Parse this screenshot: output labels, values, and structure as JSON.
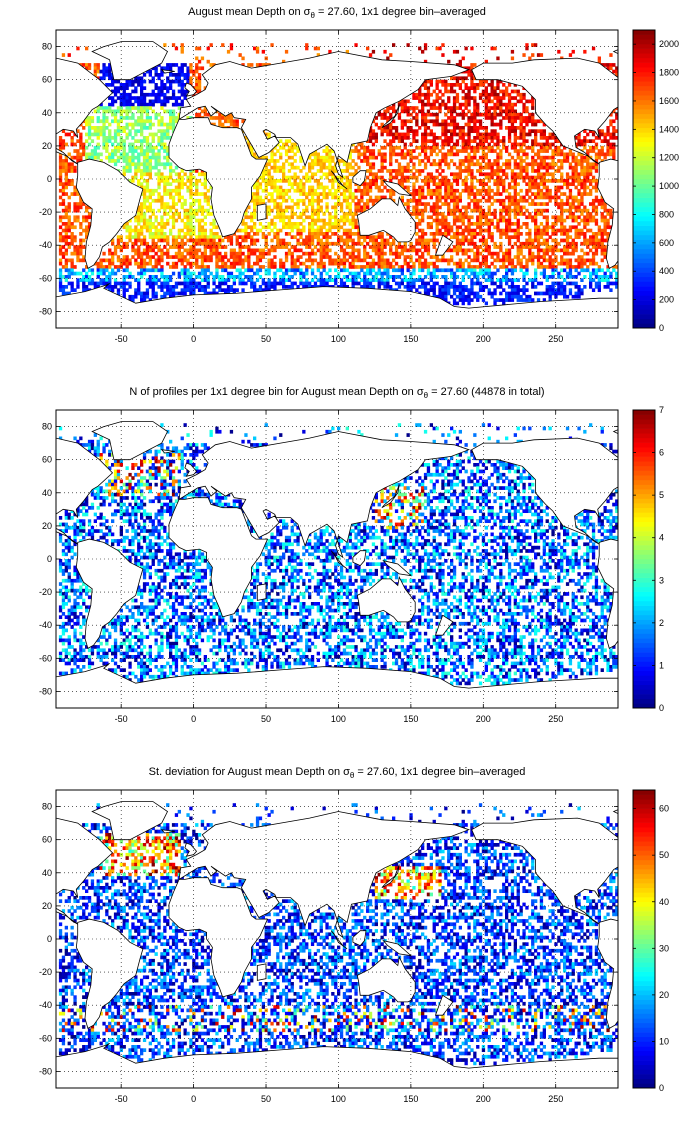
{
  "panels": [
    {
      "title_pre": "August mean Depth on σ",
      "title_sub": "θ",
      "title_post": " = 27.60, 1x1 degree bin–averaged"
    },
    {
      "title_pre": "N of profiles per 1x1 degree bin for August mean Depth on σ",
      "title_sub": "θ",
      "title_post": " = 27.60 (44878 in total)"
    },
    {
      "title_pre": "St. deviation for August mean Depth on σ",
      "title_sub": "θ",
      "title_post": " = 27.60, 1x1 degree bin–averaged"
    }
  ],
  "chart_data": [
    {
      "type": "heatmap",
      "variable": "depth",
      "x_ticks": [
        -50,
        0,
        50,
        100,
        150,
        200,
        250
      ],
      "y_ticks": [
        80,
        60,
        40,
        20,
        0,
        -20,
        -40,
        -60,
        -80
      ],
      "xlim": [
        -95,
        293
      ],
      "ylim": [
        -90,
        90
      ],
      "grid": "dotted",
      "colorbar": {
        "ticks": [
          2000,
          1800,
          1600,
          1400,
          1200,
          1000,
          800,
          600,
          400,
          200,
          0
        ],
        "range": [
          0,
          2100
        ],
        "colormap": "jet"
      }
    },
    {
      "type": "heatmap",
      "variable": "count",
      "x_ticks": [
        -50,
        0,
        50,
        100,
        150,
        200,
        250
      ],
      "y_ticks": [
        80,
        60,
        40,
        20,
        0,
        -20,
        -40,
        -60,
        -80
      ],
      "xlim": [
        -95,
        293
      ],
      "ylim": [
        -90,
        90
      ],
      "grid": "dotted",
      "colorbar": {
        "ticks": [
          7,
          6,
          5,
          4,
          3,
          2,
          1,
          0
        ],
        "range": [
          0,
          7
        ],
        "colormap": "jet"
      }
    },
    {
      "type": "heatmap",
      "variable": "std",
      "x_ticks": [
        -50,
        0,
        50,
        100,
        150,
        200,
        250
      ],
      "y_ticks": [
        80,
        60,
        40,
        20,
        0,
        -20,
        -40,
        -60,
        -80
      ],
      "xlim": [
        -95,
        293
      ],
      "ylim": [
        -90,
        90
      ],
      "grid": "dotted",
      "colorbar": {
        "ticks": [
          60,
          50,
          40,
          30,
          20,
          10,
          0
        ],
        "range": [
          0,
          64
        ],
        "colormap": "jet"
      }
    }
  ]
}
